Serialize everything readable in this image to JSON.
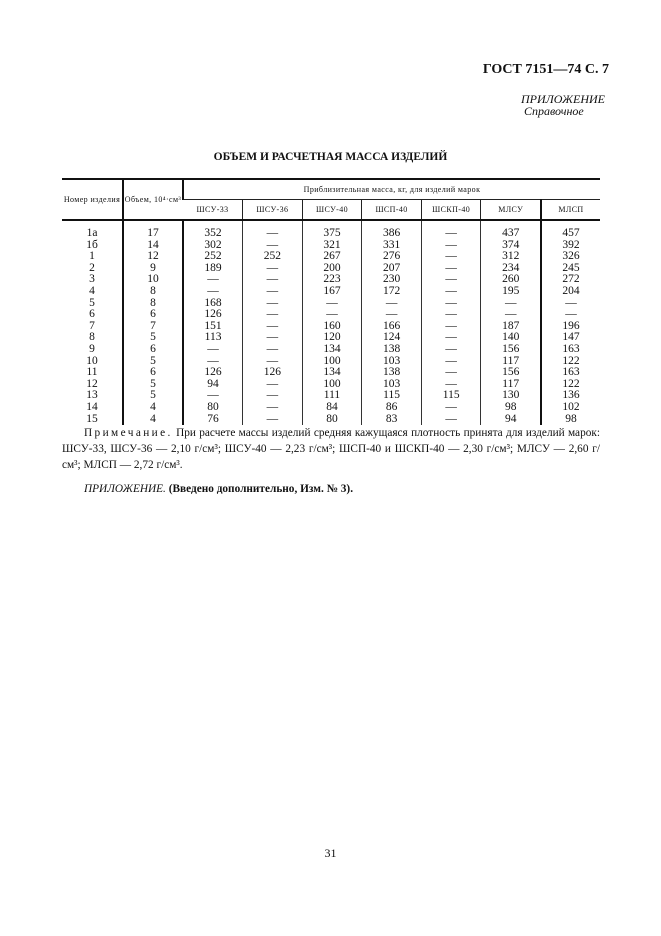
{
  "header": {
    "standard": "ГОСТ 7151—74 С. 7"
  },
  "appendix": {
    "label": "ПРИЛОЖЕНИЕ",
    "type": "Справочное"
  },
  "title": "ОБЪЕМ И РАСЧЕТНАЯ МАССА ИЗДЕЛИЙ",
  "table": {
    "col_number": "Номер изделия",
    "col_volume": "Объем, 10⁴·см³",
    "group_header": "Приблизительная масса, кг, для изделий марок",
    "grades": [
      "ШСУ-33",
      "ШСУ-36",
      "ШСУ-40",
      "ШСП-40",
      "ШСКП-40",
      "МЛСУ",
      "МЛСП"
    ],
    "rows": [
      [
        "1а",
        "17",
        "352",
        "—",
        "375",
        "386",
        "—",
        "437",
        "457"
      ],
      [
        "1б",
        "14",
        "302",
        "—",
        "321",
        "331",
        "—",
        "374",
        "392"
      ],
      [
        "1",
        "12",
        "252",
        "252",
        "267",
        "276",
        "—",
        "312",
        "326"
      ],
      [
        "2",
        "9",
        "189",
        "—",
        "200",
        "207",
        "—",
        "234",
        "245"
      ],
      [
        "3",
        "10",
        "—",
        "—",
        "223",
        "230",
        "—",
        "260",
        "272"
      ],
      [
        "4",
        "8",
        "—",
        "—",
        "167",
        "172",
        "—",
        "195",
        "204"
      ],
      [
        "5",
        "8",
        "168",
        "—",
        "—",
        "—",
        "—",
        "—",
        "—"
      ],
      [
        "6",
        "6",
        "126",
        "—",
        "—",
        "—",
        "—",
        "—",
        "—"
      ],
      [
        "7",
        "7",
        "151",
        "—",
        "160",
        "166",
        "—",
        "187",
        "196"
      ],
      [
        "8",
        "5",
        "113",
        "—",
        "120",
        "124",
        "—",
        "140",
        "147"
      ],
      [
        "9",
        "6",
        "—",
        "—",
        "134",
        "138",
        "—",
        "156",
        "163"
      ],
      [
        "10",
        "5",
        "—",
        "—",
        "100",
        "103",
        "—",
        "117",
        "122"
      ],
      [
        "11",
        "6",
        "126",
        "126",
        "134",
        "138",
        "—",
        "156",
        "163"
      ],
      [
        "12",
        "5",
        "94",
        "—",
        "100",
        "103",
        "—",
        "117",
        "122"
      ],
      [
        "13",
        "5",
        "—",
        "—",
        "111",
        "115",
        "115",
        "130",
        "136"
      ],
      [
        "14",
        "4",
        "80",
        "—",
        "84",
        "86",
        "—",
        "98",
        "102"
      ],
      [
        "15",
        "4",
        "76",
        "—",
        "80",
        "83",
        "—",
        "94",
        "98"
      ]
    ]
  },
  "note": {
    "label": "Примечание.",
    "text": "При расчете массы изделий средняя кажущаяся плотность принята для изделий марок: ШСУ-33, ШСУ-36 — 2,10 г/см³; ШСУ-40 — 2,23 г/см³; ШСП-40 и ШСКП-40 — 2,30 г/см³; МЛСУ — 2,60 г/см³; МЛСП — 2,72 г/см³."
  },
  "amendment": {
    "label": "ПРИЛОЖЕНИЕ.",
    "text": "(Введено дополнительно, Изм. № 3)."
  },
  "page_number": "31"
}
